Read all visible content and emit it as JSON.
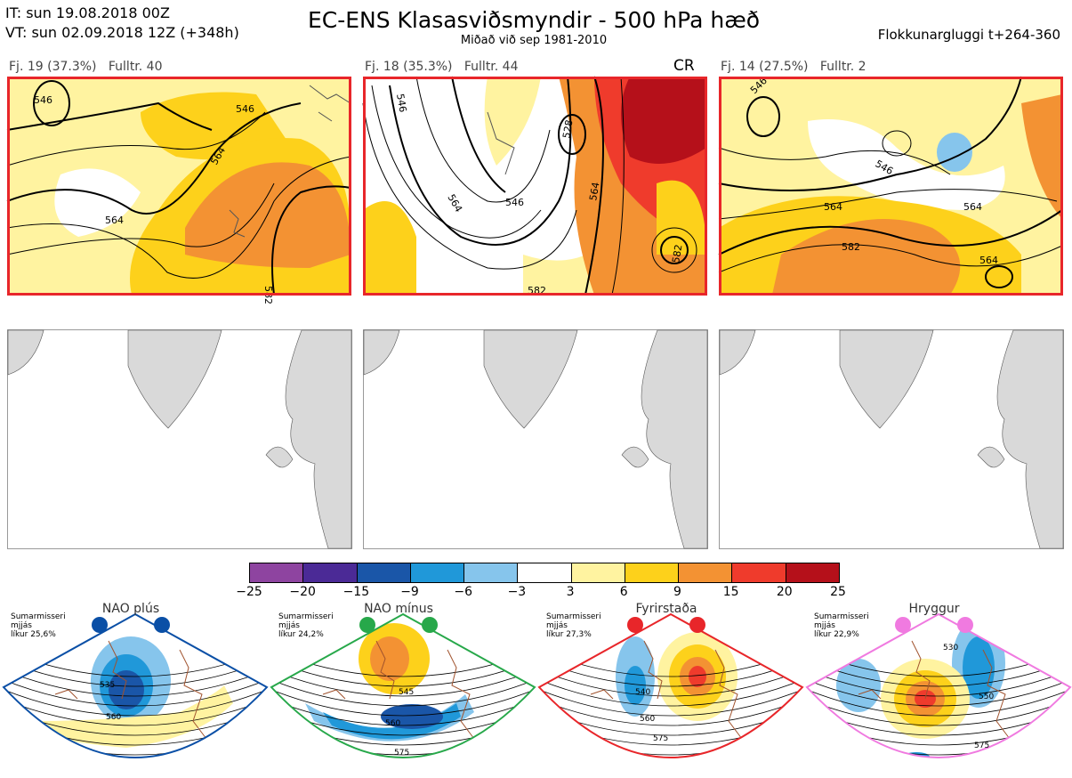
{
  "header": {
    "it_line": "IT: sun 19.08.2018 00Z",
    "vt_line": "VT: sun 02.09.2018 12Z  (+348h)",
    "title": "EC-ENS Klasasviðsmyndir - 500 hPa hæð",
    "subtitle": "Miðað við sep 1981-2010",
    "window": "Flokkunargluggi t+264-360"
  },
  "clusters": [
    {
      "label": "Fj. 19 (37.3%)",
      "rep": "Fulltr. 40",
      "badge": "",
      "contours": [
        "546",
        "564",
        "564",
        "582",
        "546"
      ]
    },
    {
      "label": "Fj. 18 (35.3%)",
      "rep": "Fulltr. 44",
      "badge": "CR",
      "contours": [
        "546",
        "546",
        "564",
        "528",
        "564",
        "582",
        "582"
      ]
    },
    {
      "label": "Fj. 14 (27.5%)",
      "rep": "Fulltr. 2",
      "badge": "",
      "contours": [
        "546",
        "546",
        "564",
        "582",
        "564",
        "564"
      ]
    }
  ],
  "colorbar": {
    "ticks": [
      "−25",
      "−20",
      "−15",
      "−9",
      "−6",
      "−3",
      "3",
      "6",
      "9",
      "15",
      "20",
      "25"
    ],
    "colors": [
      "#8e44a0",
      "#4b2a96",
      "#1a56a8",
      "#2098d9",
      "#86c5ec",
      "#ffffff",
      "#fff3a0",
      "#fdd11b",
      "#f39233",
      "#ef3b2c",
      "#b5101a"
    ]
  },
  "regimes": [
    {
      "title": "NAO plús",
      "text": [
        "Sumarmisseri",
        "mjjás",
        "líkur 25,6%"
      ],
      "color": "#0a4fa6",
      "contours": [
        "535",
        "560"
      ]
    },
    {
      "title": "NAO mínus",
      "text": [
        "Sumarmisseri",
        "mjjás",
        "líkur 24,2%"
      ],
      "color": "#27a84a",
      "contours": [
        "545",
        "560",
        "575"
      ]
    },
    {
      "title": "Fyrirstaða",
      "text": [
        "Sumarmisseri",
        "mjjás",
        "líkur 27,3%"
      ],
      "color": "#e8262a",
      "contours": [
        "540",
        "560",
        "575"
      ]
    },
    {
      "title": "Hryggur",
      "text": [
        "Sumarmisseri",
        "mjjás",
        "líkur 22,9%"
      ],
      "color": "#f07ae0",
      "contours": [
        "530",
        "550",
        "575"
      ]
    }
  ]
}
